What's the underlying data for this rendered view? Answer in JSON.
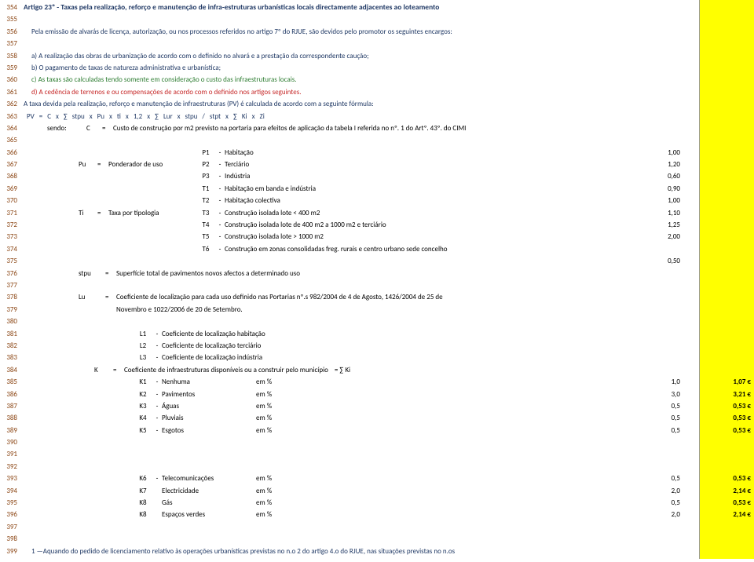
{
  "lineNumbers": [
    "354",
    "355",
    "356",
    "357",
    "358",
    "359",
    "360",
    "361",
    "362",
    "363",
    "364",
    "365",
    "366",
    "367",
    "368",
    "369",
    "370",
    "371",
    "372",
    "373",
    "374",
    "375",
    "376",
    "377",
    "378",
    "379",
    "380",
    "381",
    "382",
    "383",
    "384",
    "385",
    "386",
    "387",
    "388",
    "389",
    "390",
    "391",
    "392",
    "393",
    "394",
    "395",
    "396",
    "397",
    "398",
    "399"
  ],
  "title": "Artigo 23º - Taxas pela realização, reforço e manutenção de infra-estruturas urbanísticas locais directamente adjacentes ao loteamento",
  "intro": "Pela emissão de alvarás de licença, autorização, ou nos processos referidos no artigo 7º do RJUE,  são devidos pelo promotor os seguintes encargos:",
  "item_a": "a) A realização das obras de urbanização de acordo com o definido no alvará e a prestação da correspondente caução;",
  "item_b": "b) O pagamento de taxas de natureza administrativa e urbanística;",
  "item_c": "c) As taxas são calculadas tendo somente em consideração o custo das infraestruturas locais.",
  "item_d": "d) A cedência de terrenos e ou compensações de acordo com o definido nos artigos seguintes.",
  "taxa_line": "A taxa devida pela realização, reforço e manutenção de infraestruturas (PV) é calculada de acordo com a seguinte fórmula:",
  "formula": [
    "PV",
    "=",
    "C",
    "x",
    "∑",
    "stpu",
    "x",
    "Pu",
    "x",
    "ti",
    "x",
    "1,2",
    "x",
    "∑",
    "Lur",
    "x",
    "stpu",
    "/",
    "stpt",
    "x",
    "∑",
    "Ki",
    "x",
    "Zi"
  ],
  "sendo": "sendo:",
  "c_def": "Custo de construção por m2 previsto na portaria para efeitos de aplicação da tabela I referida no nº. 1 do Artº. 43º. do CIMI",
  "pu_sym": "Pu",
  "pu_def": "Ponderador de uso",
  "p_rows": [
    {
      "code": "P1",
      "desc": "Habitação",
      "val": "1,00"
    },
    {
      "code": "P2",
      "desc": "Terciário",
      "val": "1,20"
    },
    {
      "code": "P3",
      "desc": "Indústria",
      "val": "0,60"
    }
  ],
  "ti_sym": "Ti",
  "ti_def": "Taxa por tipologia",
  "t_rows": [
    {
      "code": "T1",
      "desc": "Habitação em banda e indústria",
      "val": "0,90"
    },
    {
      "code": "T2",
      "desc": "Habitação colectiva",
      "val": "1,00"
    },
    {
      "code": "T3",
      "desc": "Construção isolada lote < 400 m2",
      "val": "1,10"
    },
    {
      "code": "T4",
      "desc": "Construção isolada lote de 400 m2 a 1000 m2 e terciário",
      "val": "1,25"
    },
    {
      "code": "T5",
      "desc": "Construção isolada lote  > 1000 m2",
      "val": "2,00"
    },
    {
      "code": "T6",
      "desc": "Construção em zonas consolidadas freg. rurais e centro urbano sede concelho",
      "val": ""
    }
  ],
  "t6_val": "0,50",
  "stpu_sym": "stpu",
  "stpu_def": "Superfície total de pavimentos novos afectos a determinado uso",
  "lu_sym": "Lu",
  "lu_def1": "Coeficiente de localização para cada uso definido nas Portarias nº.s 982/2004 de 4 de Agosto, 1426/2004 de 25 de",
  "lu_def2": "Novembro e 1022/2006 de 20 de Setembro.",
  "l_rows": [
    {
      "code": "L1",
      "desc": "Coeficiente de localização habitação"
    },
    {
      "code": "L2",
      "desc": "Coeficiente de localização terciário"
    },
    {
      "code": "L3",
      "desc": "Coeficiente de localização indústria"
    }
  ],
  "k_sym": "K",
  "k_def": "Coeficiente de infraestruturas disponíveis ou a construir pelo município",
  "k_sum": "=    ∑    Ki",
  "k_rows_a": [
    {
      "code": "K1",
      "desc": "Nenhuma",
      "em": "em %",
      "val": "1,0",
      "euro": "1,07 €"
    },
    {
      "code": "K2",
      "desc": "Pavimentos",
      "em": "em %",
      "val": "3,0",
      "euro": "3,21 €"
    },
    {
      "code": "K3",
      "desc": "Águas",
      "em": "em %",
      "val": "0,5",
      "euro": "0,53 €"
    },
    {
      "code": "K4",
      "desc": "Pluviais",
      "em": "em %",
      "val": "0,5",
      "euro": "0,53 €"
    },
    {
      "code": "K5",
      "desc": "Esgotos",
      "em": "em %",
      "val": "0,5",
      "euro": "0,53 €"
    }
  ],
  "k_rows_b": [
    {
      "code": "K6",
      "desc": "Telecomunicações",
      "em": "em %",
      "val": "0,5",
      "euro": "0,53 €"
    },
    {
      "code": "K7",
      "desc": "Electricidade",
      "em": "em %",
      "val": "2,0",
      "euro": "2,14 €"
    },
    {
      "code": "K8",
      "desc": "Gás",
      "em": "em %",
      "val": "0,5",
      "euro": "0,53 €"
    },
    {
      "code": "K8",
      "desc": "Espaços verdes",
      "em": "em %",
      "val": "2,0",
      "euro": "2,14 €"
    }
  ],
  "footnote": "1 —Aquando do pedido de licenciamento relativo às operações urbanísticas previstas no n.o 2 do artigo 4.o do RJUE, nas situações previstas no n.os"
}
